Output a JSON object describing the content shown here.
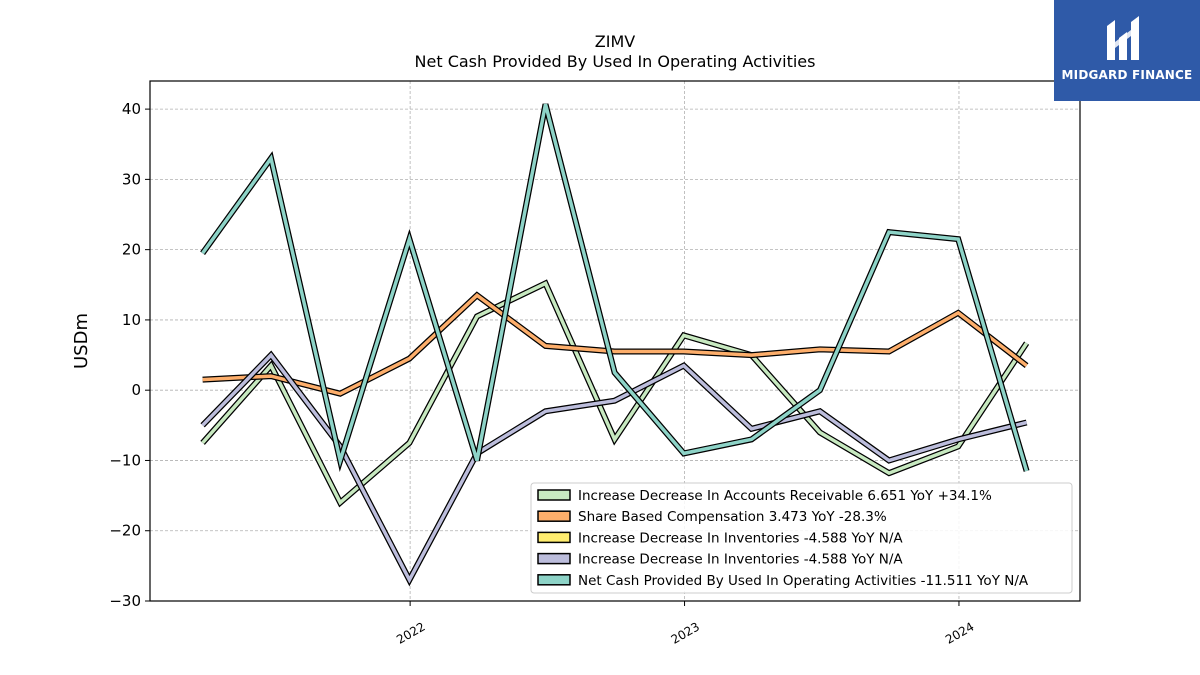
{
  "chart_data": {
    "type": "line",
    "title": "ZIMV",
    "subtitle": "Net Cash Provided By Used In Operating Activities",
    "xlabel": "",
    "ylabel": "USDm",
    "ylim": [
      -30,
      44
    ],
    "yticks": [
      -30,
      -20,
      -10,
      0,
      10,
      20,
      30,
      40
    ],
    "ytick_labels": [
      "−30",
      "−20",
      "−10",
      "0",
      "10",
      "20",
      "30",
      "40"
    ],
    "x_tick_labels": [
      "2022",
      "2023",
      "2024"
    ],
    "x": [
      "2021-03-31",
      "2021-06-30",
      "2021-09-30",
      "2021-12-31",
      "2022-03-31",
      "2022-06-30",
      "2022-09-30",
      "2022-12-31",
      "2023-03-31",
      "2023-06-30",
      "2023-09-30",
      "2023-12-31",
      "2024-03-31"
    ],
    "grid": true,
    "legend_position": "lower-right",
    "series": [
      {
        "name": "Increase Decrease In Accounts Receivable  6.651 YoY +34.1%",
        "color": "#c7e9c0",
        "values": [
          -7.5,
          3.5,
          -16,
          -7.5,
          10.5,
          15.2,
          -7,
          7.8,
          5,
          -6,
          -11.8,
          -8,
          6.7
        ]
      },
      {
        "name": "Share Based Compensation  3.473 YoY -28.3%",
        "color": "#fdae6b",
        "values": [
          1.5,
          2,
          -0.5,
          4.5,
          13.5,
          6.3,
          5.5,
          5.5,
          5,
          5.8,
          5.5,
          11,
          3.5
        ]
      },
      {
        "name": "Increase Decrease In Inventories  -4.588 YoY N/A",
        "color": "#ffed6f",
        "values": [
          null,
          null,
          null,
          null,
          null,
          null,
          null,
          null,
          null,
          null,
          null,
          null,
          null
        ]
      },
      {
        "name": "Increase Decrease In Inventories  -4.588 YoY N/A",
        "color": "#bcbddc",
        "values": [
          -5,
          5,
          -8,
          -27,
          -9,
          -3,
          -1.5,
          3.5,
          -5.5,
          -3,
          -10,
          -7,
          -4.6
        ]
      },
      {
        "name": "Net Cash Provided By Used In Operating Activities  -11.511 YoY N/A",
        "color": "#8dd3c7",
        "values": [
          19.5,
          33,
          -10,
          21.5,
          -10,
          40.7,
          2.5,
          -9,
          -7,
          0,
          22.5,
          21.5,
          -11.5
        ]
      }
    ]
  },
  "logo": {
    "text": "MIDGARD FINANCE",
    "bg_color": "#2f5aa8"
  }
}
